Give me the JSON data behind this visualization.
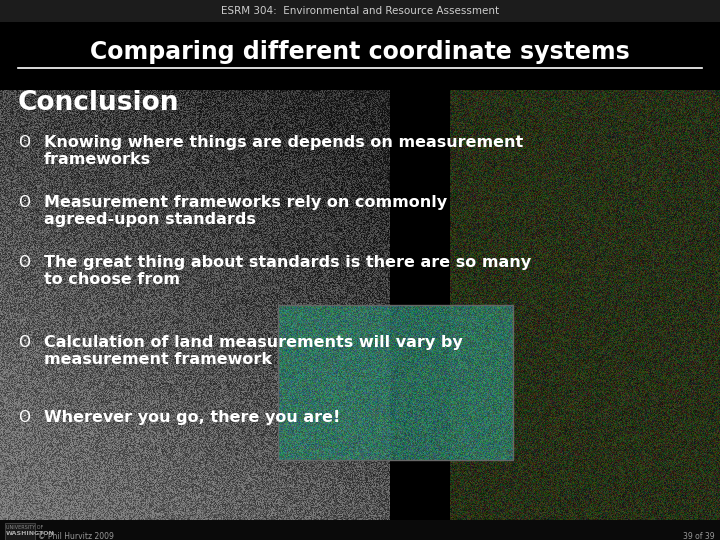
{
  "bg_color": "#000000",
  "header_bg": "#1c1c1c",
  "header_text": "ESRM 304:  Environmental and Resource Assessment",
  "header_color": "#cccccc",
  "header_fontsize": 7.5,
  "title_text": "Comparing different coordinate systems",
  "title_color": "#ffffff",
  "title_fontsize": 17,
  "divider_color": "#ffffff",
  "section_title": "Conclusion",
  "section_title_color": "#ffffff",
  "section_title_fontsize": 19,
  "bullets": [
    [
      "Knowing where things are depends on measurement",
      "frameworks"
    ],
    [
      "Measurement frameworks rely on commonly",
      "agreed-upon standards"
    ],
    [
      "The great thing about standards is there are so many",
      "to choose from"
    ],
    [
      "Calculation of land measurements will vary by",
      "measurement framework"
    ],
    [
      "Wherever you go, there you are!"
    ]
  ],
  "bullet_color": "#ffffff",
  "bullet_fontsize": 11.5,
  "footer_copyright": "© Phil Hurvitz 2009",
  "slide_number": "39 of 39",
  "footer_color": "#999999",
  "footer_fontsize": 5.5
}
